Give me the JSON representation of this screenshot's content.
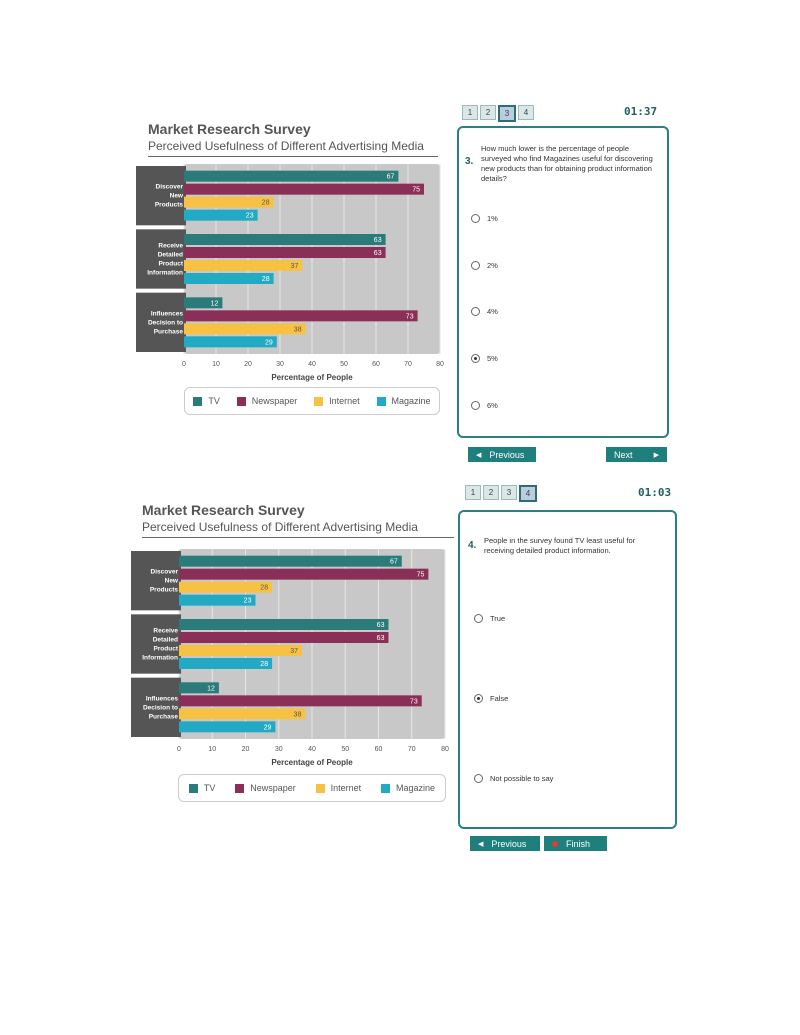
{
  "colors": {
    "tv": "#2b7b7b",
    "newspaper": "#8a2f57",
    "internet": "#f7c243",
    "magazine": "#22a9c4",
    "plot_bg": "#c8c8c8",
    "label_bg": "#555555"
  },
  "chart_data": [
    {
      "type": "bar",
      "orientation": "horizontal",
      "title": "Market Research Survey",
      "subtitle": "Perceived Usefulness of Different Advertising Media",
      "categories": [
        "Discover New Products",
        "Receive Detailed Product Information",
        "Influences Decision to Purchase"
      ],
      "category_lines": [
        [
          "Discover",
          "New",
          "Products"
        ],
        [
          "Receive",
          "Detailed",
          "Product",
          "Information"
        ],
        [
          "Influences",
          "Decision to",
          "Purchase"
        ]
      ],
      "series": [
        {
          "name": "TV",
          "values": [
            67,
            63,
            12
          ]
        },
        {
          "name": "Newspaper",
          "values": [
            75,
            63,
            73
          ]
        },
        {
          "name": "Internet",
          "values": [
            28,
            37,
            38
          ]
        },
        {
          "name": "Magazine",
          "values": [
            23,
            28,
            29
          ]
        }
      ],
      "xlabel": "Percentage of People",
      "xlim": [
        0,
        80
      ],
      "xticks": [
        "0",
        "10",
        "20",
        "30",
        "40",
        "50",
        "60",
        "70",
        "80"
      ],
      "legend_position": "bottom"
    },
    {
      "type": "bar",
      "orientation": "horizontal",
      "title": "Market Research Survey",
      "subtitle": "Perceived Usefulness of Different Advertising Media",
      "categories": [
        "Discover New Products",
        "Receive Detailed Product Information",
        "Influences Decision to Purchase"
      ],
      "category_lines": [
        [
          "Discover",
          "New",
          "Products"
        ],
        [
          "Receive",
          "Detailed",
          "Product",
          "Information"
        ],
        [
          "Influences",
          "Decision to",
          "Purchase"
        ]
      ],
      "series": [
        {
          "name": "TV",
          "values": [
            67,
            63,
            12
          ]
        },
        {
          "name": "Newspaper",
          "values": [
            75,
            63,
            73
          ]
        },
        {
          "name": "Internet",
          "values": [
            28,
            37,
            38
          ]
        },
        {
          "name": "Magazine",
          "values": [
            23,
            28,
            29
          ]
        }
      ],
      "xlabel": "Percentage of People",
      "xlim": [
        0,
        80
      ],
      "xticks": [
        "0",
        "10",
        "20",
        "30",
        "40",
        "50",
        "60",
        "70",
        "80"
      ],
      "legend_position": "bottom"
    }
  ],
  "legend": [
    "TV",
    "Newspaper",
    "Internet",
    "Magazine"
  ],
  "screens": [
    {
      "pages": [
        "1",
        "2",
        "3",
        "4"
      ],
      "active_page": "3",
      "timer": "01:37",
      "question_number": "3.",
      "question": "How much lower is the percentage of people surveyed who find Magazines useful for discovering new products than for obtaining product information details?",
      "options": [
        "1%",
        "2%",
        "4%",
        "5%",
        "6%"
      ],
      "selected": "5%",
      "prev_label": "Previous",
      "next_label": "Next"
    },
    {
      "pages": [
        "1",
        "2",
        "3",
        "4"
      ],
      "active_page": "4",
      "timer": "01:03",
      "question_number": "4.",
      "question": "People in the survey found TV least useful for receiving detailed product information.",
      "options": [
        "True",
        "False",
        "Not possible to say"
      ],
      "selected": "False",
      "prev_label": "Previous",
      "finish_label": "Finish"
    }
  ]
}
